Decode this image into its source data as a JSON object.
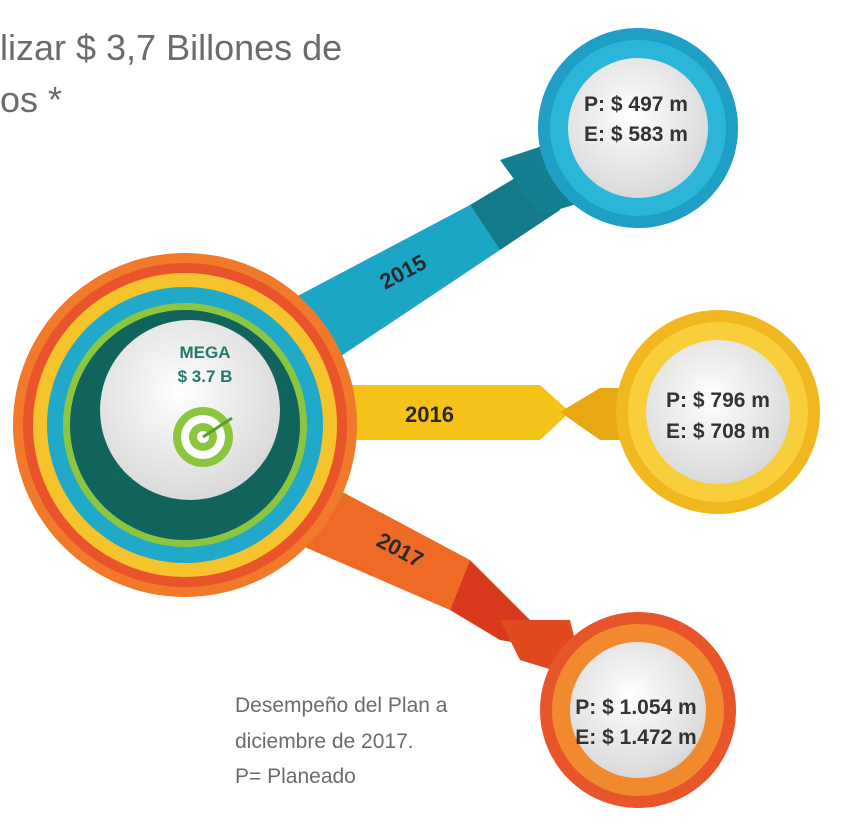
{
  "title": {
    "lines": [
      "lizar $ 3,7 Billones de",
      "os *"
    ]
  },
  "center": {
    "label": "MEGA",
    "value": "$ 3.7 B"
  },
  "branches": [
    {
      "year": "2015",
      "planned": "P: $ 497 m",
      "executed": "E: $ 583 m"
    },
    {
      "year": "2016",
      "planned": "P: $ 796 m",
      "executed": "E: $ 708 m"
    },
    {
      "year": "2017",
      "planned": "P: $ 1.054 m",
      "executed": "E: $ 1.472 m"
    }
  ],
  "footnote": {
    "lines": [
      "Desempeño del Plan a",
      "diciembre de 2017.",
      "P= Planeado"
    ]
  }
}
